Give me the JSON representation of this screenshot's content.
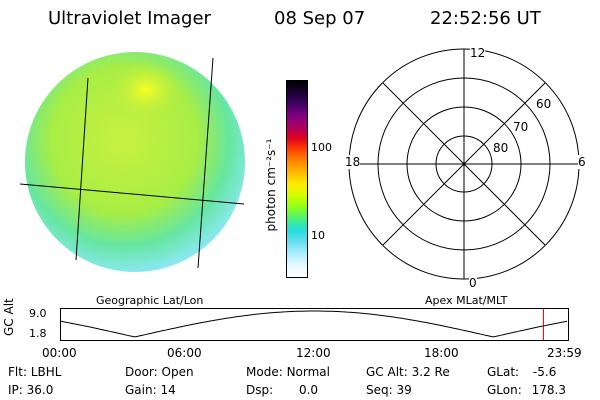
{
  "header": {
    "instrument": "Ultraviolet Imager",
    "date": "08 Sep 07",
    "time": "22:52:56 UT"
  },
  "colorbar": {
    "unit_label": "photon cm⁻²s⁻¹",
    "ticks": [
      "100",
      "10"
    ],
    "colors": [
      "#000000",
      "#1a0033",
      "#440066",
      "#800080",
      "#b00060",
      "#e00020",
      "#ff4400",
      "#ff8800",
      "#ffbb00",
      "#ffee00",
      "#ccff00",
      "#88ff22",
      "#44ee88",
      "#22dddd",
      "#66ddee",
      "#aaeeff",
      "#e8f8ff",
      "#ffffff"
    ]
  },
  "polar_grid": {
    "mlt_labels": {
      "top": "12",
      "left": "18",
      "right": "6",
      "bottom": "0"
    },
    "lat_labels": [
      "60",
      "70",
      "80"
    ]
  },
  "map_labels": {
    "left": "Geographic Lat/Lon",
    "right": "Apex MLat/MLT"
  },
  "altitude_plot": {
    "ylabel": "GC Alt",
    "yticks": [
      "9.0",
      "1.8"
    ],
    "xticks": [
      "00:00",
      "06:00",
      "12:00",
      "18:00",
      "23:59"
    ],
    "marker_time_hours": 22.88
  },
  "status": {
    "row1": [
      {
        "label": "Flt:",
        "value": "LBHL"
      },
      {
        "label": "Door:",
        "value": "Open"
      },
      {
        "label": "Mode:",
        "value": "Normal"
      },
      {
        "label": "GC Alt:",
        "value": "3.2 Re"
      },
      {
        "label": "GLat:",
        "value": "-5.6"
      }
    ],
    "row2": [
      {
        "label": "IP:",
        "value": "36.0"
      },
      {
        "label": "Gain:",
        "value": "14"
      },
      {
        "label": "Dsp:",
        "value": "0.0"
      },
      {
        "label": "Seq:",
        "value": "39"
      },
      {
        "label": "GLon:",
        "value": "178.3"
      }
    ]
  }
}
